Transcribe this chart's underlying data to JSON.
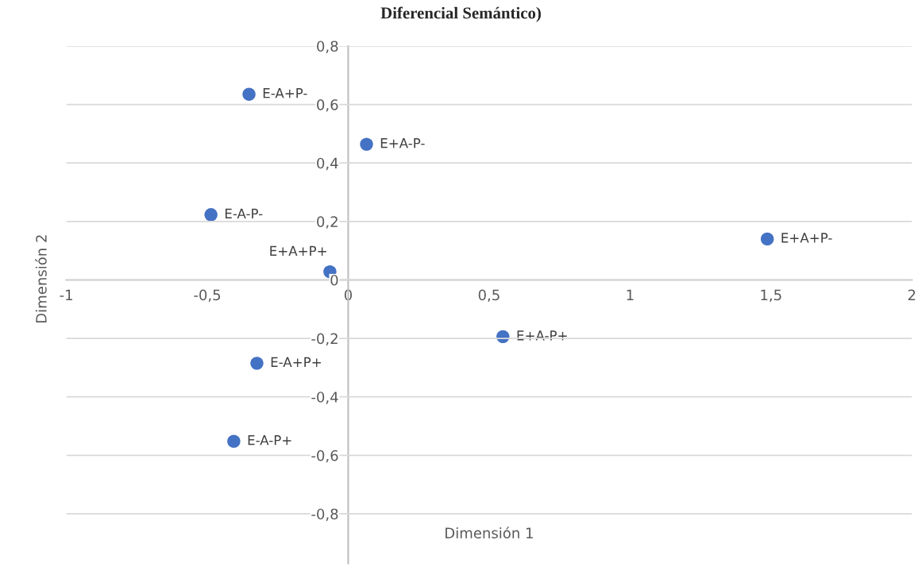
{
  "chart_data": {
    "type": "scatter",
    "title": "Diferencial Semántico)",
    "xlabel": "Dimensión 1",
    "ylabel": "Dimensión 2",
    "x": [
      -0.352,
      0.065,
      -0.487,
      -0.065,
      1.487,
      0.549,
      -0.324,
      -0.406
    ],
    "series": [
      {
        "color": "#4472c4",
        "values": [
          0.635,
          0.464,
          0.223,
          0.028,
          0.14,
          -0.194,
          -0.285,
          -0.552
        ]
      }
    ],
    "annotations": [
      {
        "text": "E-A+P-",
        "x": -0.352,
        "y": 0.635
      },
      {
        "text": "E+A-P-",
        "x": 0.065,
        "y": 0.464
      },
      {
        "text": "E-A-P-",
        "x": -0.487,
        "y": 0.223
      },
      {
        "text": "E+A+P+",
        "x": -0.065,
        "y": 0.028
      },
      {
        "text": "E+A+P-",
        "x": 1.487,
        "y": 0.14
      },
      {
        "text": "E+A-P+",
        "x": 0.549,
        "y": -0.194
      },
      {
        "text": "E-A+P+",
        "x": -0.324,
        "y": -0.285
      },
      {
        "text": "E-A-P+",
        "x": -0.406,
        "y": -0.552
      }
    ],
    "xlim": [
      -1,
      2
    ],
    "ylim": [
      -0.97,
      0.8
    ],
    "xticks": [
      {
        "value": -1,
        "label": "-1"
      },
      {
        "value": -0.5,
        "label": "-0,5"
      },
      {
        "value": 0,
        "label": "0"
      },
      {
        "value": 0.5,
        "label": "0,5"
      },
      {
        "value": 1,
        "label": "1"
      },
      {
        "value": 1.5,
        "label": "1,5"
      },
      {
        "value": 2,
        "label": "2"
      }
    ],
    "yticks": [
      {
        "value": -0.8,
        "label": "-0,8"
      },
      {
        "value": -0.6,
        "label": "-0,6"
      },
      {
        "value": -0.4,
        "label": "-0,4"
      },
      {
        "value": -0.2,
        "label": "-0,2"
      },
      {
        "value": 0,
        "label": "0"
      },
      {
        "value": 0.2,
        "label": "0,2"
      },
      {
        "value": 0.4,
        "label": "0,4"
      },
      {
        "value": 0.6,
        "label": "0,6"
      },
      {
        "value": 0.8,
        "label": "0,8"
      }
    ],
    "grid": "y",
    "marker": "circle"
  }
}
